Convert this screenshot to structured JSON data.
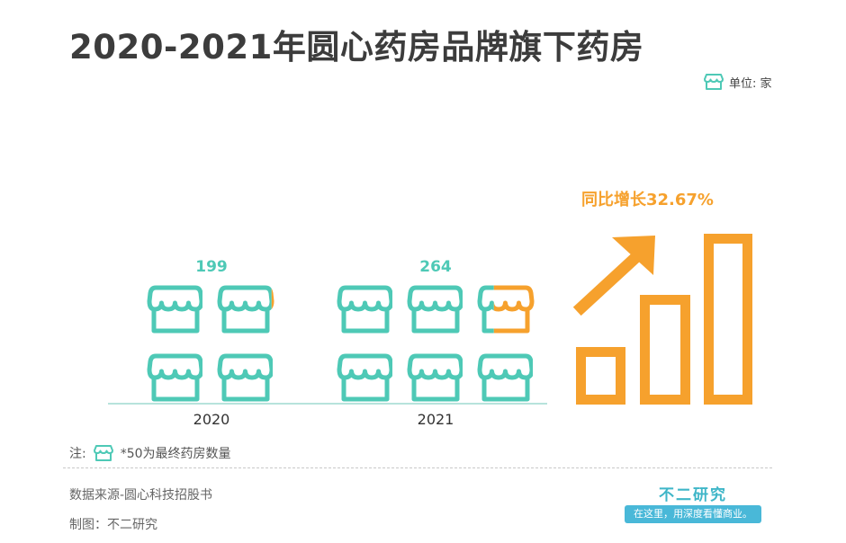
{
  "title": "2020-2021年圆心药房品牌旗下药房",
  "unit_label": "单位: 家",
  "chart_data": {
    "type": "bar",
    "title": "2020-2021年圆心药房品牌旗下药房",
    "unit": "单位: 家",
    "categories": [
      "2020",
      "2021"
    ],
    "values": [
      199,
      264
    ],
    "icon_unit_value": 50,
    "growth_label": "同比增长32.67%",
    "growth_rate_percent": 32.67
  },
  "note": {
    "prefix": "注:",
    "text": "*50为最终药房数量"
  },
  "source": "数据来源-圆心科技招股书",
  "maker": "制图：不二研究",
  "brand": {
    "name": "不二研究",
    "slogan": "在这里，用深度看懂商业。"
  },
  "colors": {
    "teal": "#4ec9b6",
    "orange": "#f6a12d",
    "title": "#3c3c3c"
  }
}
